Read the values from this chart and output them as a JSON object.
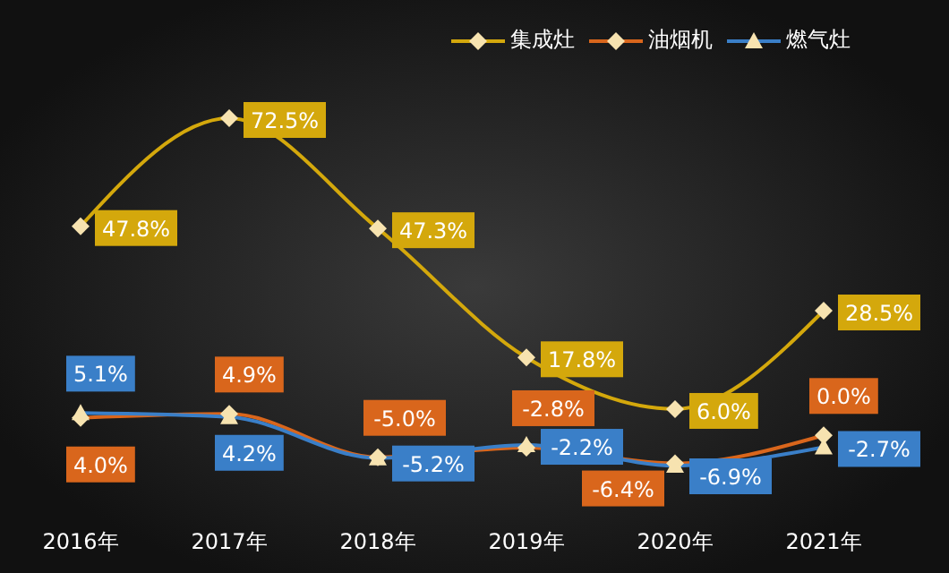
{
  "chart_data": {
    "type": "line",
    "categories": [
      "2016年",
      "2017年",
      "2018年",
      "2019年",
      "2020年",
      "2021年"
    ],
    "series": [
      {
        "name": "集成灶",
        "color": "#d4a80c",
        "values": [
          47.8,
          72.5,
          47.3,
          17.8,
          6.0,
          28.5
        ],
        "value_labels": [
          "47.8%",
          "72.5%",
          "47.3%",
          "17.8%",
          "6.0%",
          "28.5%"
        ],
        "marker": "diamond"
      },
      {
        "name": "油烟机",
        "color": "#d9661c",
        "values": [
          4.0,
          4.9,
          -5.0,
          -2.8,
          -6.4,
          0.0
        ],
        "value_labels": [
          "4.0%",
          "4.9%",
          "-5.0%",
          "-2.8%",
          "-6.4%",
          "0.0%"
        ],
        "marker": "diamond"
      },
      {
        "name": "燃气灶",
        "color": "#3a7fc8",
        "values": [
          5.1,
          4.2,
          -5.2,
          -2.2,
          -6.9,
          -2.7
        ],
        "value_labels": [
          "5.1%",
          "4.2%",
          "-5.2%",
          "-2.2%",
          "-6.9%",
          "-2.7%"
        ],
        "marker": "triangle"
      }
    ],
    "legend": "top right"
  }
}
